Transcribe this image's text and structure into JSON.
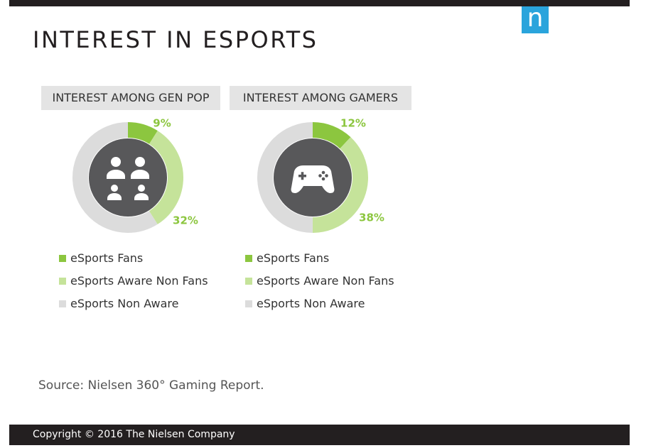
{
  "title": "INTEREST IN ESPORTS",
  "logo_letter": "n",
  "source": "Source: Nielsen 360° Gaming Report.",
  "footer": "Copyright © 2016 The Nielsen Company",
  "colors": {
    "fans": "#8cc63f",
    "aware": "#c5e39a",
    "non_aware": "#dcdcdc",
    "center": "#58585a"
  },
  "chart_data": [
    {
      "type": "pie",
      "title": "INTEREST AMONG GEN POP",
      "center_icon": "people-icon",
      "categories": [
        "eSports Fans",
        "eSports Aware Non Fans",
        "eSports Non Aware"
      ],
      "values": [
        9,
        32,
        59
      ],
      "data_labels": [
        "9%",
        "32%",
        ""
      ]
    },
    {
      "type": "pie",
      "title": "INTEREST AMONG GAMERS",
      "center_icon": "gamepad-icon",
      "categories": [
        "eSports Fans",
        "eSports Aware Non Fans",
        "eSports Non Aware"
      ],
      "values": [
        12,
        38,
        50
      ],
      "data_labels": [
        "12%",
        "38%",
        ""
      ]
    }
  ]
}
